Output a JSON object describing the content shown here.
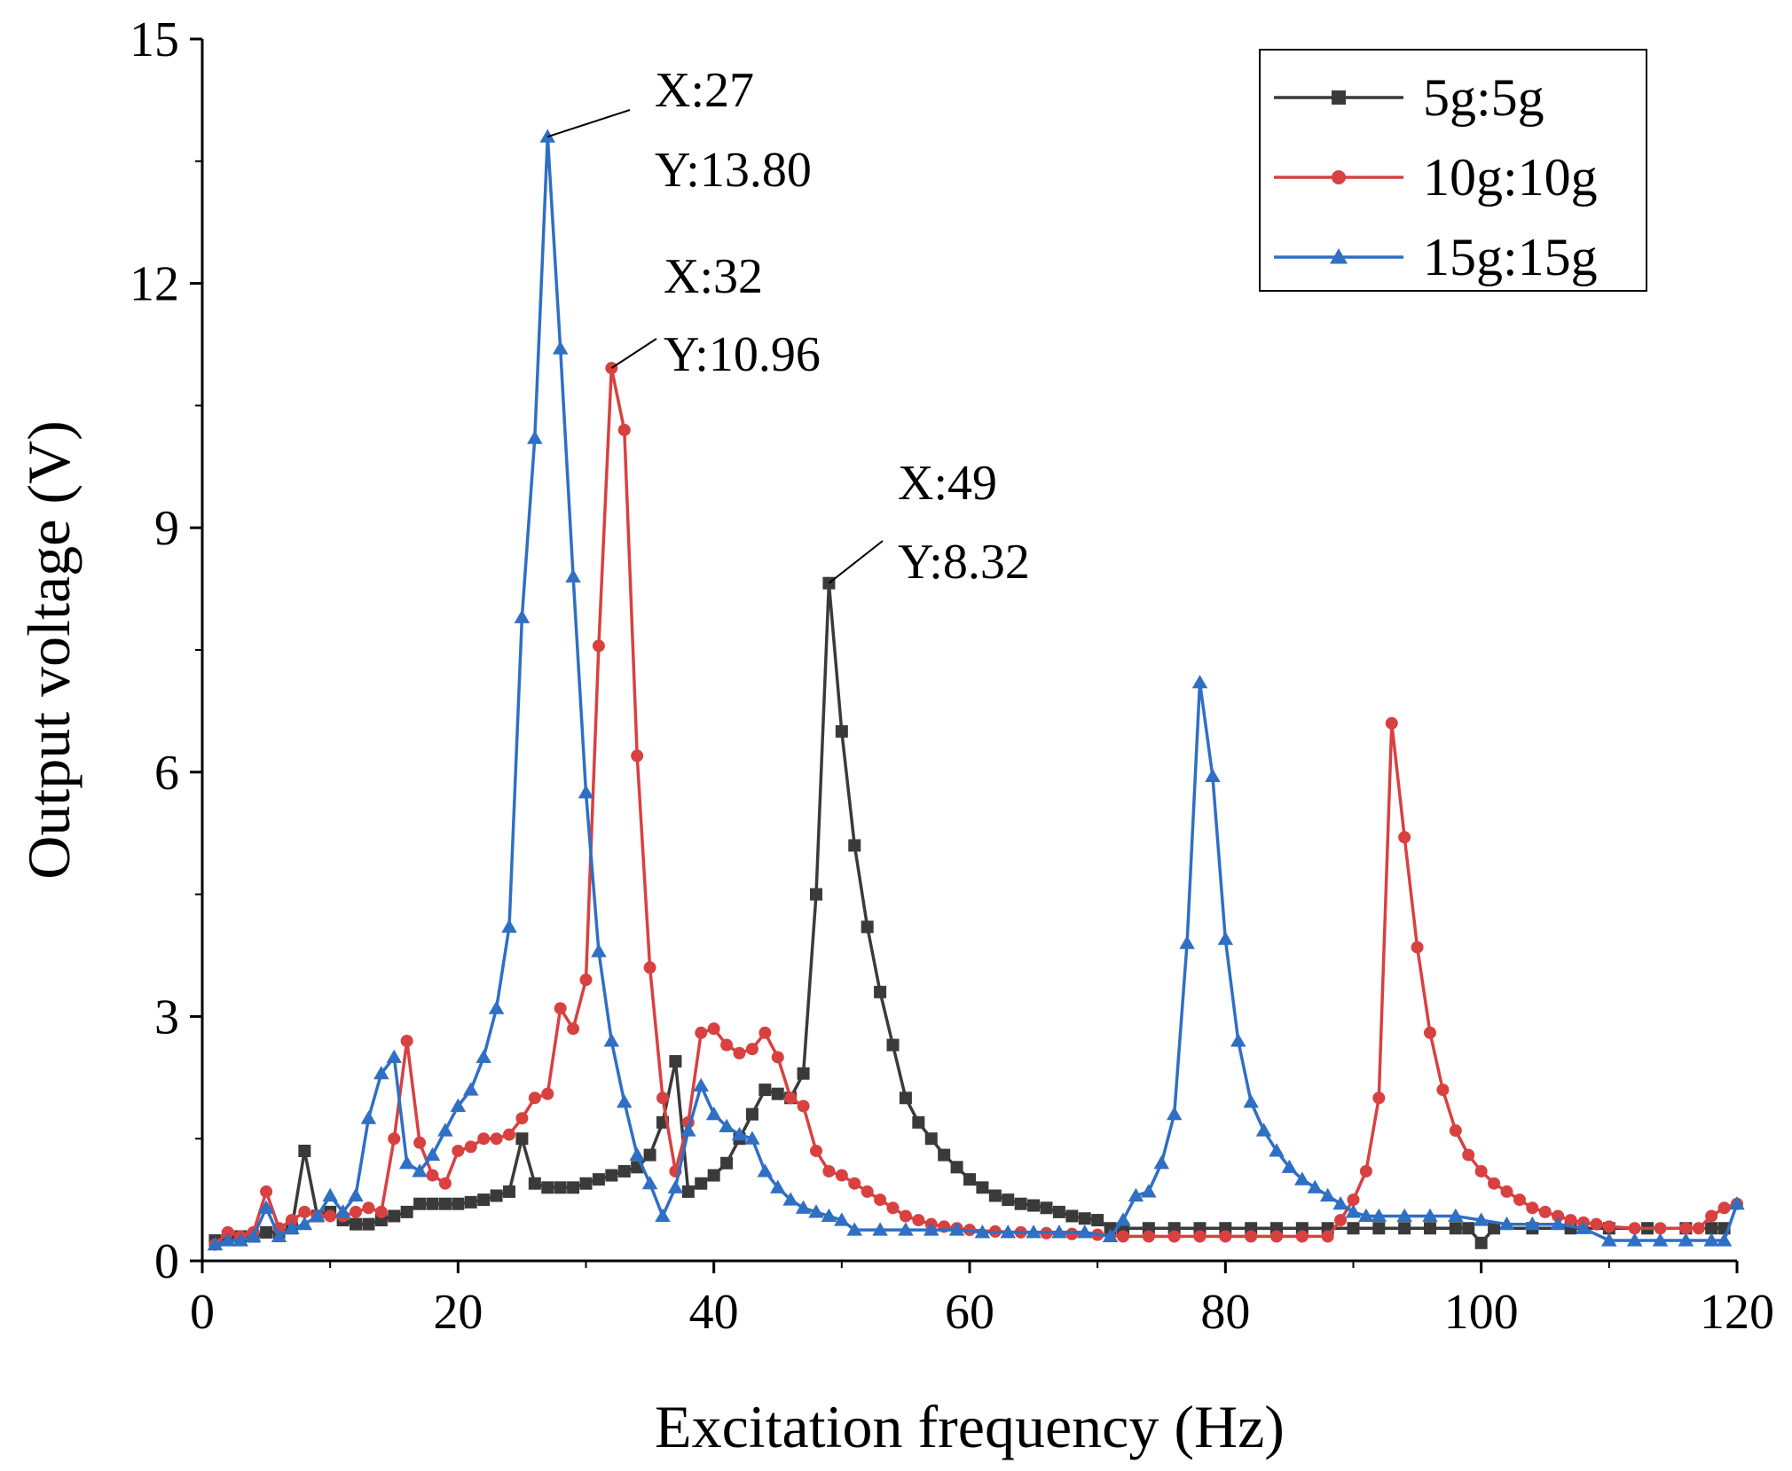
{
  "chart_data": {
    "type": "line",
    "xlabel": "Excitation frequency (Hz)",
    "ylabel": "Output voltage (V)",
    "xlim": [
      0,
      120
    ],
    "ylim": [
      0,
      15
    ],
    "xticks": [
      "0",
      "20",
      "40",
      "60",
      "80",
      "100",
      "120"
    ],
    "yticks": [
      "0",
      "3",
      "6",
      "9",
      "12",
      "15"
    ],
    "grid": false,
    "legend_position": "top-right",
    "series": [
      {
        "name": "5g:5g",
        "color": "#3a3a3a",
        "marker": "square",
        "points": [
          [
            1,
            0.25
          ],
          [
            2,
            0.3
          ],
          [
            3,
            0.3
          ],
          [
            4,
            0.3
          ],
          [
            5,
            0.35
          ],
          [
            6,
            0.35
          ],
          [
            7,
            0.4
          ],
          [
            8,
            1.35
          ],
          [
            9,
            0.55
          ],
          [
            10,
            0.6
          ],
          [
            11,
            0.5
          ],
          [
            12,
            0.45
          ],
          [
            13,
            0.45
          ],
          [
            14,
            0.5
          ],
          [
            15,
            0.55
          ],
          [
            16,
            0.6
          ],
          [
            17,
            0.7
          ],
          [
            18,
            0.7
          ],
          [
            19,
            0.7
          ],
          [
            20,
            0.7
          ],
          [
            21,
            0.72
          ],
          [
            22,
            0.75
          ],
          [
            23,
            0.8
          ],
          [
            24,
            0.85
          ],
          [
            25,
            1.5
          ],
          [
            26,
            0.95
          ],
          [
            27,
            0.9
          ],
          [
            28,
            0.9
          ],
          [
            29,
            0.9
          ],
          [
            30,
            0.95
          ],
          [
            31,
            1.0
          ],
          [
            32,
            1.05
          ],
          [
            33,
            1.1
          ],
          [
            34,
            1.15
          ],
          [
            35,
            1.3
          ],
          [
            36,
            1.7
          ],
          [
            37,
            2.45
          ],
          [
            38,
            0.85
          ],
          [
            39,
            0.95
          ],
          [
            40,
            1.05
          ],
          [
            41,
            1.2
          ],
          [
            42,
            1.5
          ],
          [
            43,
            1.8
          ],
          [
            44,
            2.1
          ],
          [
            45,
            2.05
          ],
          [
            46,
            2.0
          ],
          [
            47,
            2.3
          ],
          [
            48,
            4.5
          ],
          [
            49,
            8.32
          ],
          [
            50,
            6.5
          ],
          [
            51,
            5.1
          ],
          [
            52,
            4.1
          ],
          [
            53,
            3.3
          ],
          [
            54,
            2.65
          ],
          [
            55,
            2.0
          ],
          [
            56,
            1.7
          ],
          [
            57,
            1.5
          ],
          [
            58,
            1.3
          ],
          [
            59,
            1.15
          ],
          [
            60,
            1.0
          ],
          [
            61,
            0.9
          ],
          [
            62,
            0.8
          ],
          [
            63,
            0.75
          ],
          [
            64,
            0.7
          ],
          [
            65,
            0.68
          ],
          [
            66,
            0.65
          ],
          [
            67,
            0.6
          ],
          [
            68,
            0.55
          ],
          [
            69,
            0.52
          ],
          [
            70,
            0.5
          ],
          [
            71,
            0.4
          ],
          [
            72,
            0.4
          ],
          [
            74,
            0.4
          ],
          [
            76,
            0.4
          ],
          [
            78,
            0.4
          ],
          [
            80,
            0.4
          ],
          [
            82,
            0.4
          ],
          [
            84,
            0.4
          ],
          [
            86,
            0.4
          ],
          [
            88,
            0.4
          ],
          [
            90,
            0.4
          ],
          [
            92,
            0.4
          ],
          [
            94,
            0.4
          ],
          [
            96,
            0.4
          ],
          [
            98,
            0.4
          ],
          [
            99,
            0.4
          ],
          [
            100,
            0.22
          ],
          [
            101,
            0.4
          ],
          [
            104,
            0.4
          ],
          [
            107,
            0.4
          ],
          [
            110,
            0.4
          ],
          [
            113,
            0.4
          ],
          [
            116,
            0.4
          ],
          [
            118,
            0.4
          ],
          [
            119,
            0.4
          ]
        ]
      },
      {
        "name": "10g:10g",
        "color": "#d94040",
        "marker": "circle",
        "points": [
          [
            1,
            0.2
          ],
          [
            2,
            0.35
          ],
          [
            3,
            0.3
          ],
          [
            4,
            0.35
          ],
          [
            5,
            0.85
          ],
          [
            6,
            0.4
          ],
          [
            7,
            0.5
          ],
          [
            8,
            0.6
          ],
          [
            9,
            0.55
          ],
          [
            10,
            0.55
          ],
          [
            11,
            0.55
          ],
          [
            12,
            0.6
          ],
          [
            13,
            0.65
          ],
          [
            14,
            0.6
          ],
          [
            15,
            1.5
          ],
          [
            16,
            2.7
          ],
          [
            17,
            1.45
          ],
          [
            18,
            1.05
          ],
          [
            19,
            0.95
          ],
          [
            20,
            1.35
          ],
          [
            21,
            1.4
          ],
          [
            22,
            1.5
          ],
          [
            23,
            1.5
          ],
          [
            24,
            1.55
          ],
          [
            25,
            1.75
          ],
          [
            26,
            2.0
          ],
          [
            27,
            2.05
          ],
          [
            28,
            3.1
          ],
          [
            29,
            2.85
          ],
          [
            30,
            3.45
          ],
          [
            31,
            7.55
          ],
          [
            32,
            10.96
          ],
          [
            33,
            10.2
          ],
          [
            34,
            6.2
          ],
          [
            35,
            3.6
          ],
          [
            36,
            2.0
          ],
          [
            37,
            1.1
          ],
          [
            38,
            1.7
          ],
          [
            39,
            2.8
          ],
          [
            40,
            2.85
          ],
          [
            41,
            2.65
          ],
          [
            42,
            2.55
          ],
          [
            43,
            2.6
          ],
          [
            44,
            2.8
          ],
          [
            45,
            2.5
          ],
          [
            46,
            2.0
          ],
          [
            47,
            1.9
          ],
          [
            48,
            1.35
          ],
          [
            49,
            1.1
          ],
          [
            50,
            1.05
          ],
          [
            51,
            0.95
          ],
          [
            52,
            0.85
          ],
          [
            53,
            0.75
          ],
          [
            54,
            0.65
          ],
          [
            55,
            0.55
          ],
          [
            56,
            0.5
          ],
          [
            57,
            0.45
          ],
          [
            58,
            0.42
          ],
          [
            59,
            0.4
          ],
          [
            60,
            0.38
          ],
          [
            62,
            0.36
          ],
          [
            64,
            0.35
          ],
          [
            66,
            0.34
          ],
          [
            68,
            0.33
          ],
          [
            70,
            0.32
          ],
          [
            72,
            0.3
          ],
          [
            74,
            0.3
          ],
          [
            76,
            0.3
          ],
          [
            78,
            0.3
          ],
          [
            80,
            0.3
          ],
          [
            82,
            0.3
          ],
          [
            84,
            0.3
          ],
          [
            86,
            0.3
          ],
          [
            88,
            0.3
          ],
          [
            89,
            0.5
          ],
          [
            90,
            0.75
          ],
          [
            91,
            1.1
          ],
          [
            92,
            2.0
          ],
          [
            93,
            6.6
          ],
          [
            94,
            5.2
          ],
          [
            95,
            3.85
          ],
          [
            96,
            2.8
          ],
          [
            97,
            2.1
          ],
          [
            98,
            1.6
          ],
          [
            99,
            1.3
          ],
          [
            100,
            1.1
          ],
          [
            101,
            0.95
          ],
          [
            102,
            0.85
          ],
          [
            103,
            0.75
          ],
          [
            104,
            0.65
          ],
          [
            105,
            0.6
          ],
          [
            106,
            0.55
          ],
          [
            107,
            0.5
          ],
          [
            108,
            0.47
          ],
          [
            109,
            0.45
          ],
          [
            110,
            0.42
          ],
          [
            112,
            0.4
          ],
          [
            114,
            0.4
          ],
          [
            116,
            0.4
          ],
          [
            117,
            0.4
          ],
          [
            118,
            0.55
          ],
          [
            119,
            0.65
          ],
          [
            120,
            0.7
          ]
        ]
      },
      {
        "name": "15g:15g",
        "color": "#2f6fc4",
        "marker": "triangle",
        "points": [
          [
            1,
            0.2
          ],
          [
            2,
            0.25
          ],
          [
            3,
            0.25
          ],
          [
            4,
            0.3
          ],
          [
            5,
            0.65
          ],
          [
            6,
            0.3
          ],
          [
            7,
            0.4
          ],
          [
            8,
            0.45
          ],
          [
            9,
            0.55
          ],
          [
            10,
            0.8
          ],
          [
            11,
            0.6
          ],
          [
            12,
            0.8
          ],
          [
            13,
            1.75
          ],
          [
            14,
            2.3
          ],
          [
            15,
            2.5
          ],
          [
            16,
            1.2
          ],
          [
            17,
            1.1
          ],
          [
            18,
            1.3
          ],
          [
            19,
            1.6
          ],
          [
            20,
            1.9
          ],
          [
            21,
            2.1
          ],
          [
            22,
            2.5
          ],
          [
            23,
            3.1
          ],
          [
            24,
            4.1
          ],
          [
            25,
            7.9
          ],
          [
            26,
            10.1
          ],
          [
            27,
            13.8
          ],
          [
            28,
            11.2
          ],
          [
            29,
            8.4
          ],
          [
            30,
            5.75
          ],
          [
            31,
            3.8
          ],
          [
            32,
            2.7
          ],
          [
            33,
            1.95
          ],
          [
            34,
            1.3
          ],
          [
            35,
            0.95
          ],
          [
            36,
            0.55
          ],
          [
            37,
            0.9
          ],
          [
            38,
            1.6
          ],
          [
            39,
            2.15
          ],
          [
            40,
            1.8
          ],
          [
            41,
            1.65
          ],
          [
            42,
            1.55
          ],
          [
            43,
            1.5
          ],
          [
            44,
            1.1
          ],
          [
            45,
            0.9
          ],
          [
            46,
            0.75
          ],
          [
            47,
            0.65
          ],
          [
            48,
            0.6
          ],
          [
            49,
            0.55
          ],
          [
            50,
            0.5
          ],
          [
            51,
            0.38
          ],
          [
            53,
            0.38
          ],
          [
            55,
            0.38
          ],
          [
            57,
            0.38
          ],
          [
            59,
            0.38
          ],
          [
            61,
            0.35
          ],
          [
            63,
            0.35
          ],
          [
            65,
            0.35
          ],
          [
            67,
            0.35
          ],
          [
            69,
            0.35
          ],
          [
            71,
            0.3
          ],
          [
            72,
            0.5
          ],
          [
            73,
            0.8
          ],
          [
            74,
            0.85
          ],
          [
            75,
            1.2
          ],
          [
            76,
            1.8
          ],
          [
            77,
            3.9
          ],
          [
            78,
            7.1
          ],
          [
            79,
            5.95
          ],
          [
            80,
            3.95
          ],
          [
            81,
            2.7
          ],
          [
            82,
            1.95
          ],
          [
            83,
            1.6
          ],
          [
            84,
            1.35
          ],
          [
            85,
            1.15
          ],
          [
            86,
            1.0
          ],
          [
            87,
            0.9
          ],
          [
            88,
            0.8
          ],
          [
            89,
            0.7
          ],
          [
            90,
            0.6
          ],
          [
            91,
            0.55
          ],
          [
            92,
            0.55
          ],
          [
            94,
            0.55
          ],
          [
            96,
            0.55
          ],
          [
            98,
            0.55
          ],
          [
            100,
            0.5
          ],
          [
            102,
            0.45
          ],
          [
            104,
            0.45
          ],
          [
            106,
            0.45
          ],
          [
            108,
            0.4
          ],
          [
            110,
            0.25
          ],
          [
            112,
            0.25
          ],
          [
            114,
            0.25
          ],
          [
            116,
            0.25
          ],
          [
            118,
            0.25
          ],
          [
            119,
            0.25
          ],
          [
            120,
            0.7
          ]
        ]
      }
    ],
    "annotations": [
      {
        "x": 27,
        "y": 13.8,
        "text_x": "X:27",
        "text_y": "Y:13.80",
        "color": "#2f6fc4"
      },
      {
        "x": 32,
        "y": 10.96,
        "text_x": "X:32",
        "text_y": "Y:10.96",
        "color": "#d94040"
      },
      {
        "x": 49,
        "y": 8.32,
        "text_x": "X:49",
        "text_y": "Y:8.32",
        "color": "#3a3a3a"
      }
    ]
  }
}
